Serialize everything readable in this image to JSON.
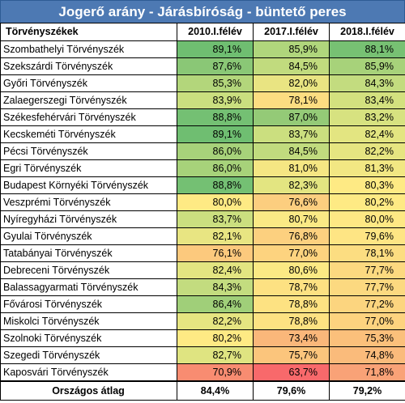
{
  "title": "Jogerő arány - Járásbíróság - büntető peres",
  "headers": [
    "Törvényszékek",
    "2010.I.félév",
    "2017.I.félév",
    "2018.I.félév"
  ],
  "rows": [
    {
      "name": "Szombathelyi Törvényszék",
      "v": [
        "89,1%",
        "85,9%",
        "88,1%"
      ],
      "c": [
        "#6fbe71",
        "#b0d67c",
        "#77c173"
      ]
    },
    {
      "name": "Szekszárdi Törvényszék",
      "v": [
        "87,6%",
        "84,5%",
        "85,9%"
      ],
      "c": [
        "#8ac776",
        "#c1db7e",
        "#a7d27a"
      ]
    },
    {
      "name": "Győri Törvényszék",
      "v": [
        "85,3%",
        "82,0%",
        "84,3%"
      ],
      "c": [
        "#b3d67b",
        "#e9e482",
        "#c3dc7f"
      ]
    },
    {
      "name": "Zalaegerszegi Törvényszék",
      "v": [
        "83,9%",
        "78,1%",
        "83,4%"
      ],
      "c": [
        "#cadf7f",
        "#fcdd81",
        "#d3e17f"
      ]
    },
    {
      "name": "Székesfehérvári Törvényszék",
      "v": [
        "88,8%",
        "87,0%",
        "83,2%"
      ],
      "c": [
        "#74c073",
        "#94ca77",
        "#d7e280"
      ]
    },
    {
      "name": "Kecskeméti Törvényszék",
      "v": [
        "89,1%",
        "83,7%",
        "82,4%"
      ],
      "c": [
        "#6fbe71",
        "#cbdf7f",
        "#e3e581"
      ]
    },
    {
      "name": "Pécsi Törvényszék",
      "v": [
        "86,0%",
        "84,5%",
        "82,2%"
      ],
      "c": [
        "#a7d27a",
        "#c1db7e",
        "#e6e581"
      ]
    },
    {
      "name": "Egri Törvényszék",
      "v": [
        "86,0%",
        "81,0%",
        "81,3%"
      ],
      "c": [
        "#a7d27a",
        "#f5e683",
        "#f2e783"
      ]
    },
    {
      "name": "Budapest Környéki Törvényszék",
      "v": [
        "88,8%",
        "82,3%",
        "80,3%"
      ],
      "c": [
        "#74c073",
        "#e3e581",
        "#feea84"
      ]
    },
    {
      "name": "Veszprémi Törvényszék",
      "v": [
        "80,0%",
        "76,6%",
        "80,2%"
      ],
      "c": [
        "#feea84",
        "#fcce7f",
        "#feea84"
      ]
    },
    {
      "name": "Nyíregyházi Törvényszék",
      "v": [
        "83,7%",
        "80,7%",
        "80,0%"
      ],
      "c": [
        "#cbdf7f",
        "#fae985",
        "#fee884"
      ]
    },
    {
      "name": "Gyulai Törvényszék",
      "v": [
        "82,1%",
        "76,8%",
        "79,6%"
      ],
      "c": [
        "#e8e582",
        "#fcd07f",
        "#fee584"
      ]
    },
    {
      "name": "Tatabányai Törvényszék",
      "v": [
        "76,1%",
        "77,0%",
        "78,1%"
      ],
      "c": [
        "#fcc97d",
        "#fdd37f",
        "#fcdd81"
      ]
    },
    {
      "name": "Debreceni Törvényszék",
      "v": [
        "82,4%",
        "80,6%",
        "77,7%"
      ],
      "c": [
        "#e3e581",
        "#fbe984",
        "#fcd980"
      ]
    },
    {
      "name": "Balassagyarmati Törvényszék",
      "v": [
        "84,3%",
        "78,7%",
        "77,7%"
      ],
      "c": [
        "#c3dc7f",
        "#fde182",
        "#fcd980"
      ]
    },
    {
      "name": "Fővárosi Törvényszék",
      "v": [
        "86,4%",
        "78,8%",
        "77,2%"
      ],
      "c": [
        "#a0cf79",
        "#fde282",
        "#fcd57f"
      ]
    },
    {
      "name": "Miskolci Törvényszék",
      "v": [
        "82,2%",
        "78,8%",
        "77,0%"
      ],
      "c": [
        "#e6e581",
        "#fde282",
        "#fdd37f"
      ]
    },
    {
      "name": "Szolnoki Törvényszék",
      "v": [
        "80,2%",
        "73,4%",
        "75,3%"
      ],
      "c": [
        "#feea84",
        "#fab77a",
        "#fbc07b"
      ]
    },
    {
      "name": "Szegedi Törvényszék",
      "v": [
        "82,7%",
        "75,7%",
        "74,8%"
      ],
      "c": [
        "#dfe481",
        "#fbc57c",
        "#fabb7b"
      ]
    },
    {
      "name": "Kaposvári Törvényszék",
      "v": [
        "70,9%",
        "63,7%",
        "71,8%"
      ],
      "c": [
        "#f88c71",
        "#f8696b",
        "#f9a277"
      ]
    }
  ],
  "footer": {
    "name": "Országos átlag",
    "v": [
      "84,4%",
      "79,6%",
      "79,2%"
    ]
  }
}
